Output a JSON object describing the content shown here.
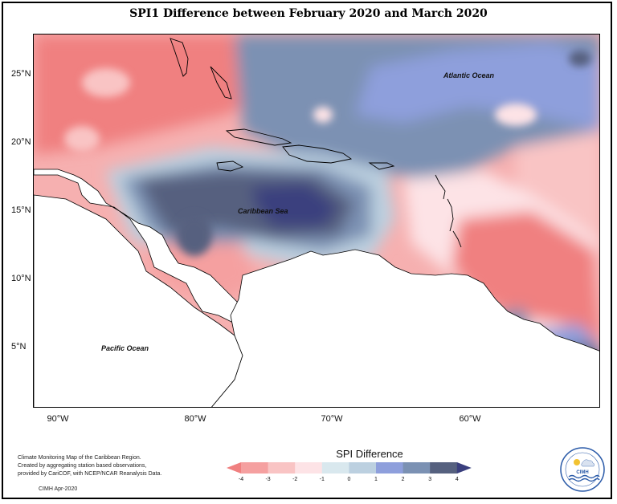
{
  "map": {
    "title": "SPI1 Difference between February 2020 and March 2020",
    "region": "Caribbean",
    "latitude_labels": [
      "25°N",
      "20°N",
      "15°N",
      "10°N",
      "5°N"
    ],
    "longitude_labels": [
      "90°W",
      "80°W",
      "70°W",
      "60°W"
    ],
    "place_labels": {
      "atlantic": "Atlantic Ocean",
      "caribbean": "Caribbean Sea",
      "pacific": "Pacific Ocean"
    }
  },
  "credits": {
    "lines": [
      "Climate Monitoring Map of the Caribbean Region.",
      "Created by aggregating station based observations,",
      "provided by CariCOF, with NCEP/NCAR Reanalysis Data."
    ],
    "date": "CIMH Apr-2020"
  },
  "legend": {
    "title": "SPI Difference",
    "ticks": [
      "-4",
      "-3",
      "-2",
      "-1",
      "0",
      "1",
      "2",
      "3",
      "4"
    ],
    "colors": [
      "#f08080",
      "#f5a0a0",
      "#f9c4c4",
      "#fde3e6",
      "#d9e8ee",
      "#bcd0e0",
      "#8e9fdc",
      "#7b91b3",
      "#56617f",
      "#3a3f7e"
    ]
  },
  "logo": {
    "text": "CIMH",
    "icon": "cimh-logo-icon"
  }
}
